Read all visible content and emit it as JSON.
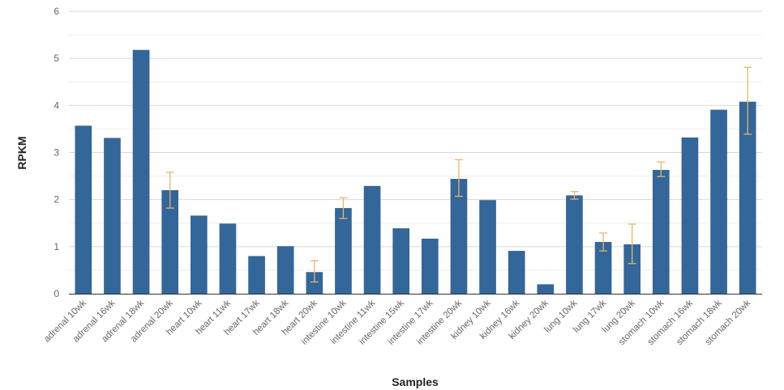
{
  "chart_data": {
    "type": "bar",
    "xlabel": "Samples",
    "ylabel": "RPKM",
    "ylim": [
      0,
      6
    ],
    "yticks": [
      0,
      1,
      2,
      3,
      4,
      5,
      6
    ],
    "grid": true,
    "categories": [
      "adrenal 10wk",
      "adrenal 16wk",
      "adrenal 18wk",
      "adrenal 20wk",
      "heart 10wk",
      "heart 11wk",
      "heart 17wk",
      "heart 18wk",
      "heart 20wk",
      "intestine 10wk",
      "intestine 11wk",
      "intestine 15wk",
      "intestine 17wk",
      "intestine 20wk",
      "kidney 10wk",
      "kidney 16wk",
      "kidney 20wk",
      "lung 10wk",
      "lung 17wk",
      "lung 20wk",
      "stomach 10wk",
      "stomach 16wk",
      "stomach 18wk",
      "stomach 20wk"
    ],
    "values": [
      3.57,
      3.31,
      5.18,
      2.2,
      1.66,
      1.49,
      0.8,
      1.01,
      0.46,
      1.82,
      2.29,
      1.39,
      1.17,
      2.44,
      1.99,
      0.91,
      0.2,
      2.09,
      1.1,
      1.05,
      2.63,
      3.32,
      3.91,
      4.08
    ],
    "error_bars": [
      null,
      null,
      null,
      [
        1.82,
        2.58
      ],
      null,
      null,
      null,
      null,
      [
        0.25,
        0.7
      ],
      [
        1.6,
        2.04
      ],
      null,
      null,
      null,
      [
        2.07,
        2.85
      ],
      null,
      null,
      null,
      [
        2.01,
        2.17
      ],
      [
        0.91,
        1.29
      ],
      [
        0.64,
        1.48
      ],
      [
        2.49,
        2.8
      ],
      null,
      null,
      [
        3.39,
        4.81
      ]
    ],
    "colors": {
      "bar": "#336699",
      "error": "#e8b56a",
      "grid": "#d8d8d8",
      "minor_grid": "#eeeeee",
      "axis": "#333333"
    }
  }
}
